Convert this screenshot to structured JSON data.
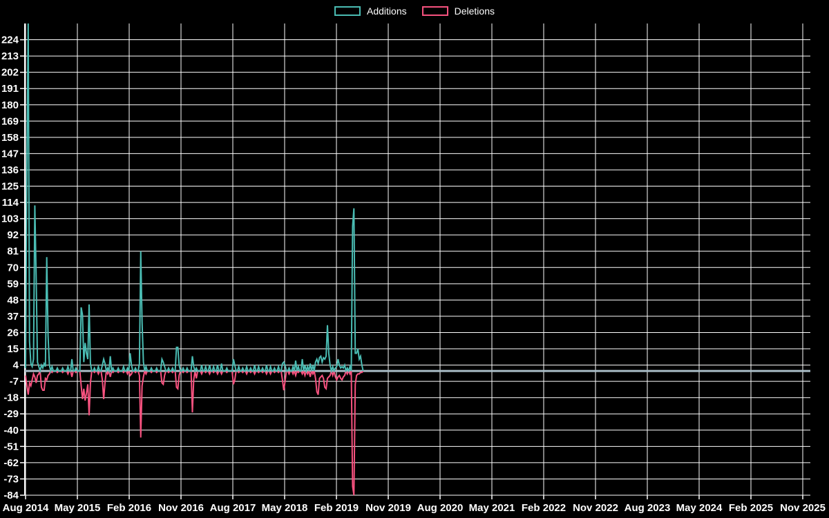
{
  "page": {
    "background_color": "#000000",
    "text_color": "#ffffff"
  },
  "legend": {
    "items": [
      {
        "label": "Additions",
        "color": "#4abcb3"
      },
      {
        "label": "Deletions",
        "color": "#f7527f"
      }
    ]
  },
  "chart_data": {
    "type": "line",
    "title": "",
    "xlabel": "",
    "ylabel": "",
    "grid": true,
    "grid_color": "#ffffff",
    "zero_line_color": "#a9bdc7",
    "background": "#000000",
    "legend_position": "top-center",
    "x_tick_labels": [
      "Aug 2014",
      "May 2015",
      "Feb 2016",
      "Nov 2016",
      "Aug 2017",
      "May 2018",
      "Feb 2019",
      "Nov 2019",
      "Aug 2020",
      "May 2021",
      "Feb 2022",
      "Nov 2022",
      "Aug 2023",
      "May 2024",
      "Feb 2025",
      "Nov 2025"
    ],
    "x_months_per_tick": 9,
    "y_ticks": [
      224,
      213,
      202,
      191,
      180,
      169,
      158,
      147,
      136,
      125,
      114,
      103,
      92,
      81,
      70,
      59,
      48,
      37,
      26,
      15,
      4,
      -7,
      -18,
      -29,
      -40,
      -51,
      -62,
      -73,
      -84
    ],
    "ylim": [
      -84,
      235
    ],
    "weeks_total": 256,
    "unlisted_weeks_value": 0,
    "series": [
      {
        "name": "Additions",
        "color": "#4abcb3",
        "sparse_weekly_points": [
          [
            0,
            2
          ],
          [
            1,
            139
          ],
          [
            2,
            235
          ],
          [
            3,
            20
          ],
          [
            4,
            5
          ],
          [
            5,
            3
          ],
          [
            6,
            8
          ],
          [
            7,
            112
          ],
          [
            8,
            64
          ],
          [
            9,
            6
          ],
          [
            10,
            3
          ],
          [
            12,
            4
          ],
          [
            13,
            2
          ],
          [
            14,
            5
          ],
          [
            15,
            3
          ],
          [
            16,
            77
          ],
          [
            17,
            24
          ],
          [
            18,
            4
          ],
          [
            20,
            3
          ],
          [
            24,
            2
          ],
          [
            28,
            2
          ],
          [
            32,
            3
          ],
          [
            35,
            8
          ],
          [
            38,
            2
          ],
          [
            42,
            43
          ],
          [
            43,
            38
          ],
          [
            44,
            6
          ],
          [
            45,
            19
          ],
          [
            46,
            12
          ],
          [
            47,
            8
          ],
          [
            48,
            45
          ],
          [
            49,
            5
          ],
          [
            52,
            2
          ],
          [
            55,
            3
          ],
          [
            58,
            4
          ],
          [
            59,
            8
          ],
          [
            60,
            5
          ],
          [
            62,
            2
          ],
          [
            64,
            10
          ],
          [
            66,
            2
          ],
          [
            70,
            2
          ],
          [
            74,
            3
          ],
          [
            77,
            2
          ],
          [
            79,
            12
          ],
          [
            80,
            4
          ],
          [
            83,
            2
          ],
          [
            86,
            5
          ],
          [
            87,
            81
          ],
          [
            88,
            33
          ],
          [
            89,
            6
          ],
          [
            91,
            3
          ],
          [
            95,
            2
          ],
          [
            99,
            2
          ],
          [
            103,
            8
          ],
          [
            104,
            6
          ],
          [
            105,
            3
          ],
          [
            108,
            2
          ],
          [
            111,
            2
          ],
          [
            114,
            16
          ],
          [
            115,
            16
          ],
          [
            116,
            4
          ],
          [
            119,
            2
          ],
          [
            122,
            2
          ],
          [
            126,
            10
          ],
          [
            127,
            3
          ],
          [
            129,
            2
          ],
          [
            133,
            4
          ],
          [
            136,
            3
          ],
          [
            139,
            4
          ],
          [
            142,
            3
          ],
          [
            145,
            4
          ],
          [
            148,
            5
          ],
          [
            152,
            2
          ],
          [
            157,
            8
          ],
          [
            158,
            4
          ],
          [
            161,
            3
          ],
          [
            164,
            2
          ],
          [
            167,
            3
          ],
          [
            170,
            2
          ],
          [
            173,
            4
          ],
          [
            176,
            3
          ],
          [
            179,
            2
          ],
          [
            182,
            4
          ],
          [
            185,
            3
          ],
          [
            188,
            2
          ],
          [
            191,
            3
          ],
          [
            194,
            5
          ],
          [
            195,
            6
          ],
          [
            196,
            4
          ],
          [
            199,
            2
          ],
          [
            202,
            3
          ],
          [
            204,
            7
          ],
          [
            206,
            3
          ],
          [
            209,
            8
          ],
          [
            211,
            4
          ],
          [
            213,
            3
          ],
          [
            215,
            5
          ],
          [
            217,
            4
          ],
          [
            219,
            6
          ],
          [
            220,
            8
          ],
          [
            221,
            5
          ],
          [
            222,
            9
          ],
          [
            223,
            10
          ],
          [
            224,
            6
          ],
          [
            225,
            9
          ],
          [
            226,
            8
          ],
          [
            227,
            10
          ],
          [
            228,
            31
          ],
          [
            229,
            12
          ],
          [
            230,
            4
          ],
          [
            232,
            3
          ],
          [
            234,
            2
          ],
          [
            235,
            3
          ],
          [
            236,
            8
          ],
          [
            237,
            4
          ],
          [
            238,
            2
          ],
          [
            239,
            3
          ],
          [
            240,
            2
          ],
          [
            241,
            4
          ],
          [
            243,
            2
          ],
          [
            245,
            3
          ],
          [
            247,
            98
          ],
          [
            248,
            110
          ],
          [
            249,
            12
          ],
          [
            250,
            12
          ],
          [
            251,
            15
          ],
          [
            252,
            8
          ],
          [
            253,
            10
          ],
          [
            254,
            4
          ]
        ]
      },
      {
        "name": "Deletions",
        "color": "#f7527f",
        "sparse_weekly_points": [
          [
            0,
            -3
          ],
          [
            1,
            -10
          ],
          [
            2,
            -16
          ],
          [
            3,
            -8
          ],
          [
            4,
            -10
          ],
          [
            5,
            -6
          ],
          [
            6,
            -2
          ],
          [
            7,
            -4
          ],
          [
            8,
            -8
          ],
          [
            9,
            -3
          ],
          [
            10,
            -2
          ],
          [
            12,
            -11
          ],
          [
            13,
            -13
          ],
          [
            14,
            -13
          ],
          [
            15,
            -5
          ],
          [
            16,
            -6
          ],
          [
            17,
            -3
          ],
          [
            18,
            -2
          ],
          [
            20,
            -1
          ],
          [
            24,
            -1
          ],
          [
            28,
            -1
          ],
          [
            32,
            -2
          ],
          [
            35,
            -4
          ],
          [
            38,
            -1
          ],
          [
            42,
            -10
          ],
          [
            43,
            -19
          ],
          [
            44,
            -12
          ],
          [
            45,
            -20
          ],
          [
            46,
            -15
          ],
          [
            47,
            -9
          ],
          [
            48,
            -30
          ],
          [
            49,
            -8
          ],
          [
            52,
            -1
          ],
          [
            55,
            -2
          ],
          [
            58,
            -6
          ],
          [
            59,
            -19
          ],
          [
            60,
            -8
          ],
          [
            62,
            -2
          ],
          [
            64,
            -4
          ],
          [
            66,
            -1
          ],
          [
            70,
            -1
          ],
          [
            74,
            -1
          ],
          [
            77,
            -2
          ],
          [
            79,
            -3
          ],
          [
            80,
            -2
          ],
          [
            83,
            -1
          ],
          [
            86,
            -3
          ],
          [
            87,
            -45
          ],
          [
            88,
            -10
          ],
          [
            89,
            -4
          ],
          [
            91,
            -2
          ],
          [
            95,
            -1
          ],
          [
            99,
            -1
          ],
          [
            103,
            -8
          ],
          [
            104,
            -9
          ],
          [
            105,
            -3
          ],
          [
            108,
            -1
          ],
          [
            111,
            -1
          ],
          [
            114,
            -11
          ],
          [
            115,
            -12
          ],
          [
            116,
            -3
          ],
          [
            119,
            -1
          ],
          [
            122,
            -1
          ],
          [
            126,
            -28
          ],
          [
            127,
            -6
          ],
          [
            129,
            -5
          ],
          [
            133,
            -2
          ],
          [
            136,
            -1
          ],
          [
            139,
            -2
          ],
          [
            142,
            -1
          ],
          [
            145,
            -2
          ],
          [
            148,
            -2
          ],
          [
            152,
            -1
          ],
          [
            157,
            -9
          ],
          [
            158,
            -6
          ],
          [
            161,
            -1
          ],
          [
            164,
            -1
          ],
          [
            167,
            -2
          ],
          [
            170,
            -1
          ],
          [
            173,
            -2
          ],
          [
            176,
            -1
          ],
          [
            179,
            -1
          ],
          [
            182,
            -2
          ],
          [
            185,
            -2
          ],
          [
            188,
            -1
          ],
          [
            191,
            -1
          ],
          [
            194,
            -6
          ],
          [
            195,
            -13
          ],
          [
            196,
            -7
          ],
          [
            199,
            -2
          ],
          [
            202,
            -2
          ],
          [
            204,
            -3
          ],
          [
            206,
            -1
          ],
          [
            209,
            -2
          ],
          [
            211,
            -3
          ],
          [
            213,
            -2
          ],
          [
            215,
            -4
          ],
          [
            217,
            -2
          ],
          [
            219,
            -5
          ],
          [
            220,
            -14
          ],
          [
            221,
            -16
          ],
          [
            222,
            -5
          ],
          [
            223,
            -4
          ],
          [
            224,
            -3
          ],
          [
            225,
            -5
          ],
          [
            226,
            -11
          ],
          [
            227,
            -12
          ],
          [
            228,
            -5
          ],
          [
            229,
            -4
          ],
          [
            230,
            -3
          ],
          [
            232,
            -3
          ],
          [
            234,
            -4
          ],
          [
            235,
            -6
          ],
          [
            236,
            -4
          ],
          [
            237,
            -3
          ],
          [
            238,
            -5
          ],
          [
            239,
            -6
          ],
          [
            240,
            -4
          ],
          [
            241,
            -3
          ],
          [
            243,
            -2
          ],
          [
            245,
            -2
          ],
          [
            247,
            -78
          ],
          [
            248,
            -84
          ],
          [
            249,
            -9
          ],
          [
            250,
            -3
          ],
          [
            251,
            -2
          ],
          [
            252,
            -2
          ],
          [
            253,
            -1
          ],
          [
            254,
            -1
          ]
        ]
      }
    ]
  }
}
